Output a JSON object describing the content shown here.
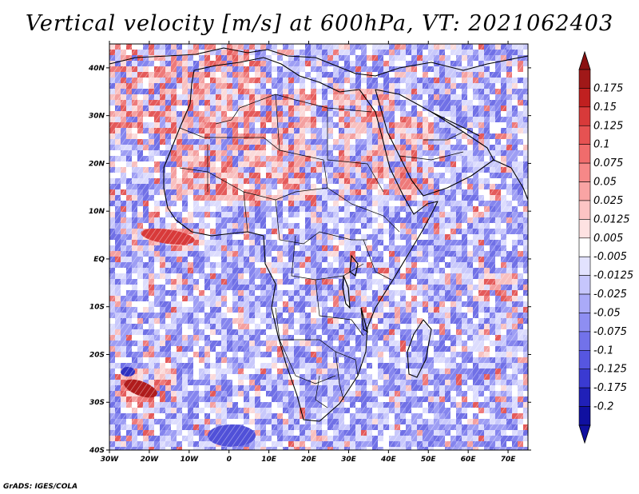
{
  "title": "Vertical velocity [m/s] at 600hPa, VT: 2021062403",
  "credit": "GrADS: IGES/COLA",
  "map": {
    "region": "Africa",
    "lon_range": [
      -30,
      75
    ],
    "lat_range": [
      -40,
      45
    ],
    "lat_ticks": [
      {
        "value": 40,
        "label": "40N"
      },
      {
        "value": 30,
        "label": "30N"
      },
      {
        "value": 20,
        "label": "20N"
      },
      {
        "value": 10,
        "label": "10N"
      },
      {
        "value": 0,
        "label": "EQ"
      },
      {
        "value": -10,
        "label": "10S"
      },
      {
        "value": -20,
        "label": "20S"
      },
      {
        "value": -30,
        "label": "30S"
      },
      {
        "value": -40,
        "label": "40S"
      }
    ],
    "lon_ticks": [
      {
        "value": -30,
        "label": "30W"
      },
      {
        "value": -20,
        "label": "20W"
      },
      {
        "value": -10,
        "label": "10W"
      },
      {
        "value": 0,
        "label": "0"
      },
      {
        "value": 10,
        "label": "10E"
      },
      {
        "value": 20,
        "label": "20E"
      },
      {
        "value": 30,
        "label": "30E"
      },
      {
        "value": 40,
        "label": "40E"
      },
      {
        "value": 50,
        "label": "50E"
      },
      {
        "value": 60,
        "label": "60E"
      },
      {
        "value": 70,
        "label": "70E"
      }
    ]
  },
  "colorbar": {
    "units": "m/s",
    "levels": [
      {
        "label": "0.175",
        "color": "#a01818"
      },
      {
        "label": "0.15",
        "color": "#c02020"
      },
      {
        "label": "0.125",
        "color": "#d83a3a"
      },
      {
        "label": "0.1",
        "color": "#e65252"
      },
      {
        "label": "0.075",
        "color": "#f06c6c"
      },
      {
        "label": "0.05",
        "color": "#f68888"
      },
      {
        "label": "0.025",
        "color": "#f9a4a4"
      },
      {
        "label": "0.0125",
        "color": "#fcc4c4"
      },
      {
        "label": "0.005",
        "color": "#fee2e2"
      },
      {
        "label": "-0.005",
        "color": "#ffffff"
      },
      {
        "label": "-0.0125",
        "color": "#e2e2fe"
      },
      {
        "label": "-0.025",
        "color": "#c6c6fc"
      },
      {
        "label": "-0.05",
        "color": "#aaaaf8"
      },
      {
        "label": "-0.075",
        "color": "#8e8ef2"
      },
      {
        "label": "-0.1",
        "color": "#7272ea"
      },
      {
        "label": "-0.125",
        "color": "#5656e0"
      },
      {
        "label": "-0.175",
        "color": "#3a3ad2"
      },
      {
        "label": "-0.2",
        "color": "#2020b8"
      },
      {
        "label": "",
        "color": "#1010a0"
      }
    ],
    "top_arrow_color": "#8a1010"
  }
}
